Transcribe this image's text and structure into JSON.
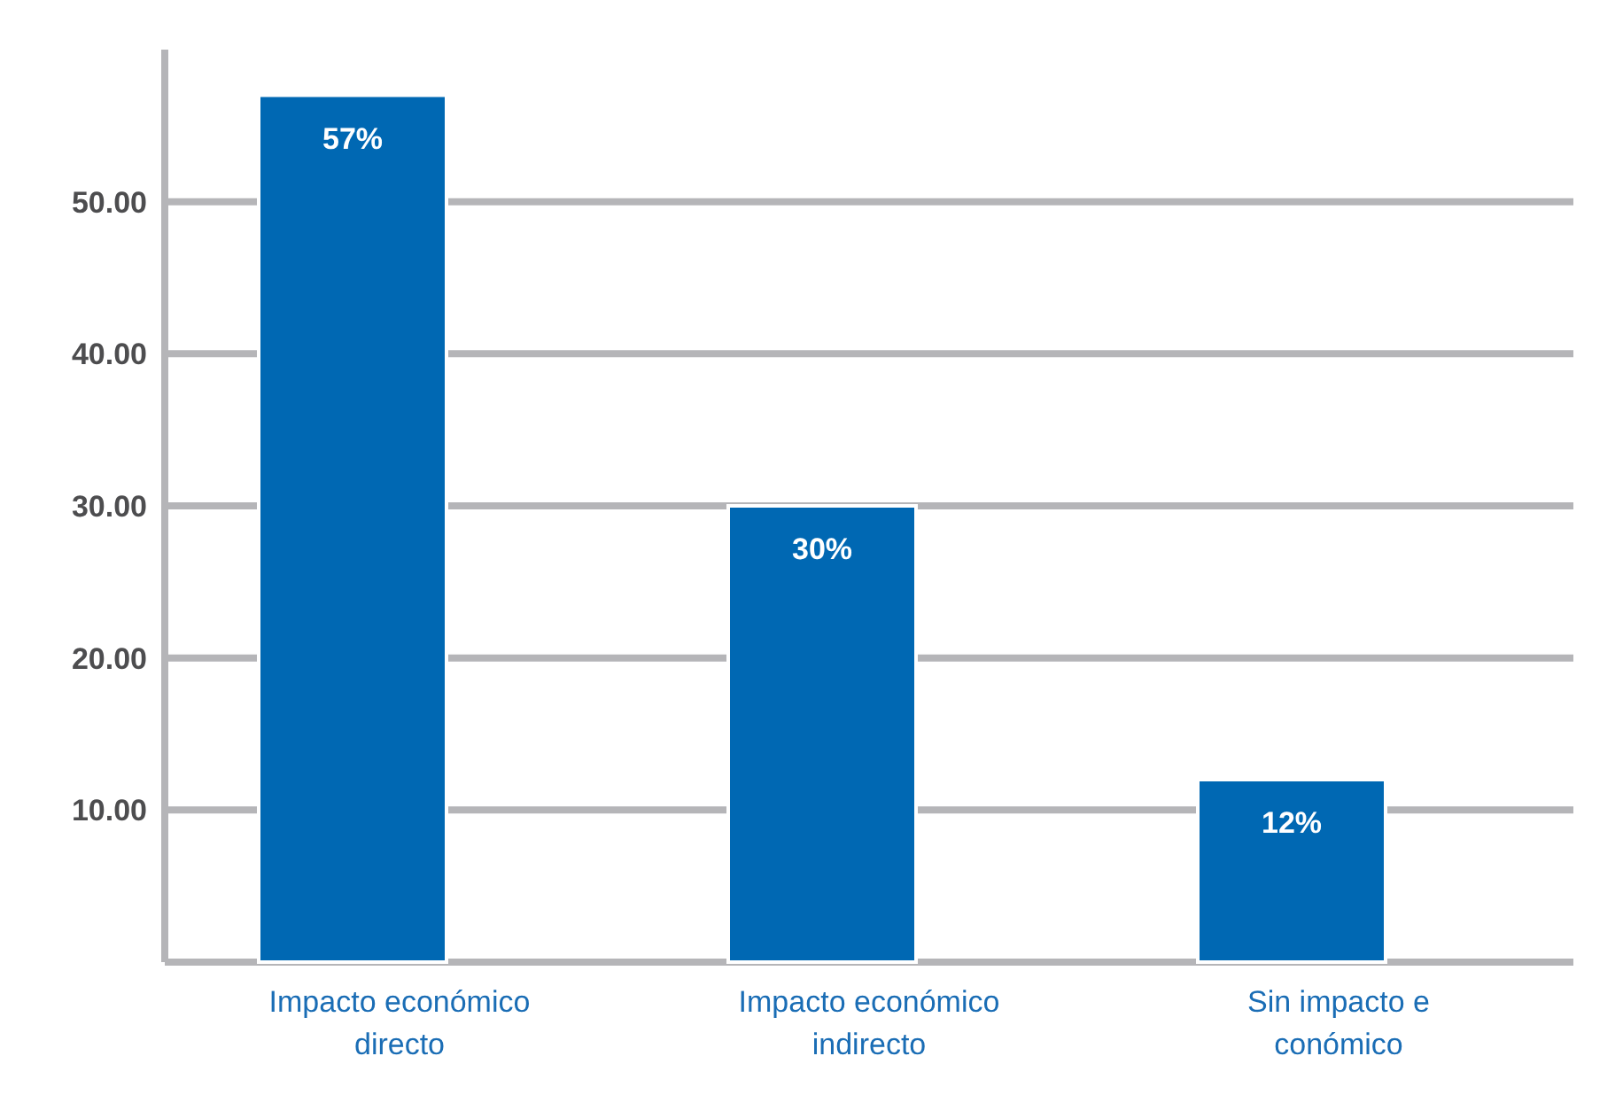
{
  "chart_data": {
    "type": "bar",
    "categories": [
      "Impacto económico directo",
      "Impacto económico indirecto",
      "Sin impacto e conómico"
    ],
    "values": [
      57,
      30,
      12
    ],
    "value_labels": [
      "57%",
      "30%",
      "12%"
    ],
    "color": "#0068b3",
    "ylim": [
      0,
      60
    ],
    "yticks": [
      {
        "value": 10,
        "label": "10.00"
      },
      {
        "value": 20,
        "label": "20.00"
      },
      {
        "value": 30,
        "label": "30.00"
      },
      {
        "value": 40,
        "label": "40.00"
      },
      {
        "value": 50,
        "label": "50.00"
      }
    ],
    "grid": "y"
  }
}
